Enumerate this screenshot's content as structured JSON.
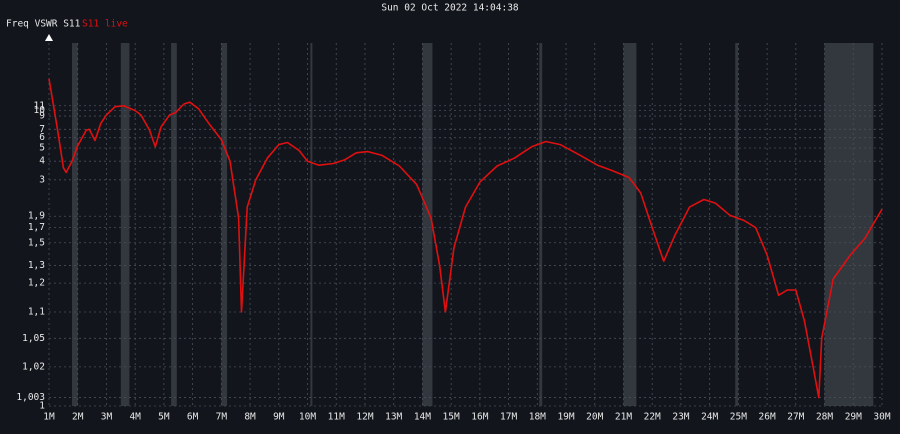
{
  "chart_data": {
    "type": "line",
    "title": "Sun 02 Oct 2022 14:04:38",
    "legend_title": "Freq VSWR S11",
    "x": [
      1.0,
      1.3,
      1.5,
      1.6,
      1.8,
      2.0,
      2.3,
      2.4,
      2.6,
      2.8,
      3.0,
      3.3,
      3.6,
      4.0,
      4.2,
      4.5,
      4.7,
      4.9,
      5.2,
      5.4,
      5.7,
      5.9,
      6.2,
      6.6,
      7.0,
      7.3,
      7.6,
      7.7,
      7.9,
      8.2,
      8.6,
      9.0,
      9.3,
      9.7,
      10.0,
      10.4,
      10.9,
      11.3,
      11.7,
      12.1,
      12.6,
      13.2,
      13.8,
      14.3,
      14.6,
      14.8,
      15.1,
      15.5,
      16.0,
      16.6,
      17.2,
      17.8,
      18.3,
      18.8,
      19.5,
      20.1,
      20.6,
      21.2,
      21.6,
      22.0,
      22.4,
      22.8,
      23.3,
      23.8,
      24.2,
      24.7,
      25.2,
      25.6,
      26.0,
      26.4,
      26.7,
      27.0,
      27.3,
      27.6,
      27.8,
      27.9,
      28.3,
      28.9,
      29.4,
      30.0
    ],
    "series": [
      {
        "name": "S11 live",
        "color": "#e01010",
        "values": [
          19,
          6.9,
          3.6,
          3.35,
          4,
          5.2,
          6.9,
          7,
          5.7,
          7.8,
          9.2,
          10.8,
          11,
          10,
          9.2,
          6.9,
          5.1,
          7.3,
          9.2,
          9.6,
          11.4,
          11.8,
          10.4,
          7.6,
          5.8,
          4,
          1.87,
          1.1,
          2.1,
          3,
          4.2,
          5.3,
          5.5,
          4.8,
          4,
          3.75,
          3.85,
          4.1,
          4.6,
          4.7,
          4.4,
          3.7,
          2.8,
          1.87,
          1.3,
          1.1,
          1.45,
          2.1,
          2.9,
          3.7,
          4.2,
          5.1,
          5.6,
          5.3,
          4.4,
          3.75,
          3.45,
          3.1,
          2.5,
          1.7,
          1.33,
          1.6,
          2.1,
          2.3,
          2.2,
          1.92,
          1.82,
          1.7,
          1.38,
          1.15,
          1.17,
          1.17,
          1.08,
          1.02,
          1.003,
          1.05,
          1.22,
          1.38,
          1.55,
          2.05
        ]
      }
    ],
    "bands": [
      [
        1.8,
        2.0
      ],
      [
        3.5,
        3.8
      ],
      [
        5.25,
        5.45
      ],
      [
        7.0,
        7.2
      ],
      [
        10.1,
        10.15
      ],
      [
        14.0,
        14.35
      ],
      [
        18.07,
        18.17
      ],
      [
        21.0,
        21.45
      ],
      [
        24.89,
        24.99
      ],
      [
        28.0,
        29.7
      ]
    ],
    "xlim": [
      1,
      30
    ],
    "xticks": [
      {
        "value": 1,
        "label": "1M"
      },
      {
        "value": 2,
        "label": "2M"
      },
      {
        "value": 3,
        "label": "3M"
      },
      {
        "value": 4,
        "label": "4M"
      },
      {
        "value": 5,
        "label": "5M"
      },
      {
        "value": 6,
        "label": "6M"
      },
      {
        "value": 7,
        "label": "7M"
      },
      {
        "value": 8,
        "label": "8M"
      },
      {
        "value": 9,
        "label": "9M"
      },
      {
        "value": 10,
        "label": "10M"
      },
      {
        "value": 11,
        "label": "11M"
      },
      {
        "value": 12,
        "label": "12M"
      },
      {
        "value": 13,
        "label": "13M"
      },
      {
        "value": 14,
        "label": "14M"
      },
      {
        "value": 15,
        "label": "15M"
      },
      {
        "value": 16,
        "label": "16M"
      },
      {
        "value": 17,
        "label": "17M"
      },
      {
        "value": 18,
        "label": "18M"
      },
      {
        "value": 19,
        "label": "19M"
      },
      {
        "value": 20,
        "label": "20M"
      },
      {
        "value": 21,
        "label": "21M"
      },
      {
        "value": 22,
        "label": "22M"
      },
      {
        "value": 23,
        "label": "23M"
      },
      {
        "value": 24,
        "label": "24M"
      },
      {
        "value": 25,
        "label": "25M"
      },
      {
        "value": 26,
        "label": "26M"
      },
      {
        "value": 27,
        "label": "27M"
      },
      {
        "value": 28,
        "label": "28M"
      },
      {
        "value": 29,
        "label": "29M"
      },
      {
        "value": 30,
        "label": "30M"
      }
    ],
    "ylim": [
      1,
      40
    ],
    "yticks": [
      1,
      {
        "value": 1.003,
        "label": "1,003"
      },
      {
        "value": 1.02,
        "label": "1,02"
      },
      {
        "value": 1.05,
        "label": "1,05"
      },
      {
        "value": 1.1,
        "label": "1,1"
      },
      {
        "value": 1.2,
        "label": "1,2"
      },
      {
        "value": 1.3,
        "label": "1,3"
      },
      {
        "value": 1.5,
        "label": "1,5"
      },
      {
        "value": 1.7,
        "label": "1,7"
      },
      {
        "value": 1.9,
        "label": "1,9"
      },
      3,
      4,
      5,
      6,
      7,
      9,
      10,
      11
    ],
    "grid": true
  }
}
